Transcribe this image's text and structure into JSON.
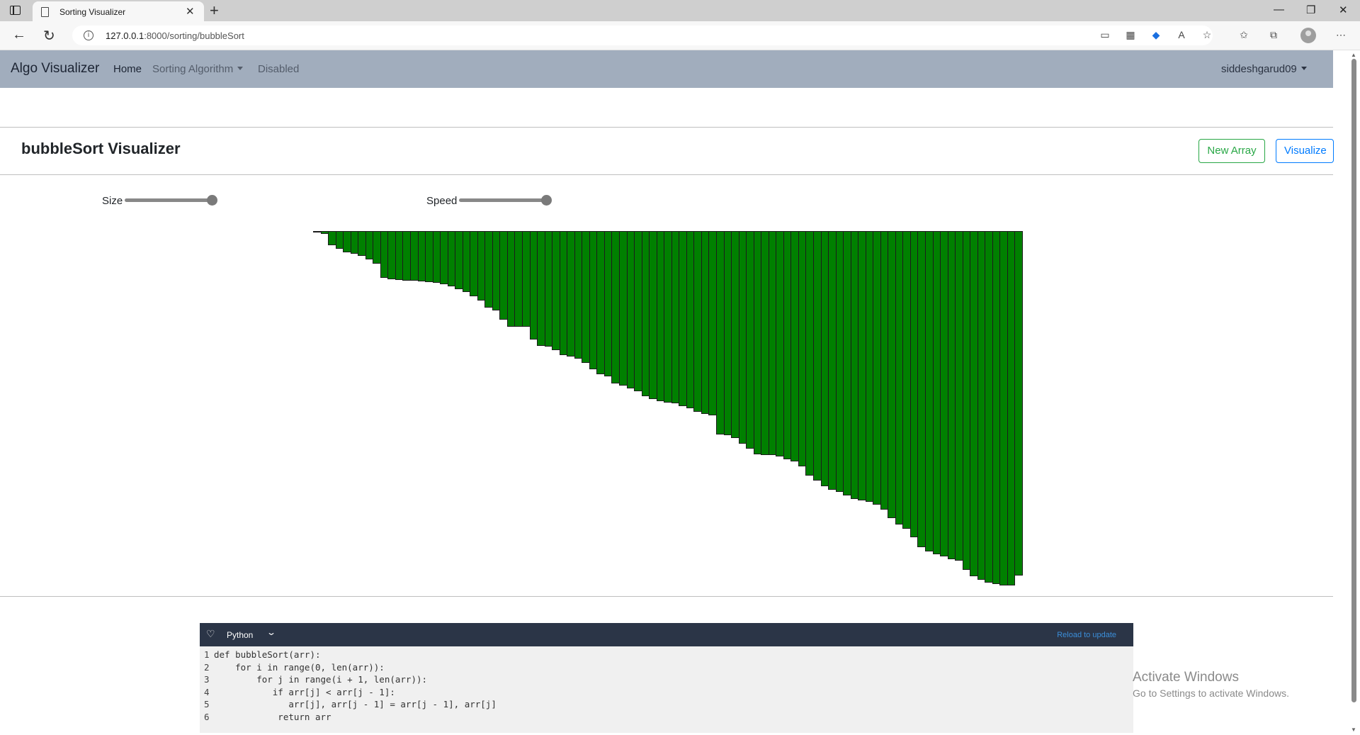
{
  "browser": {
    "tab_title": "Sorting Visualizer",
    "url_host": "127.0.0.1",
    "url_rest": ":8000/sorting/bubbleSort"
  },
  "navbar": {
    "brand": "Algo Visualizer",
    "links": [
      "Home",
      "Sorting Algorithm",
      "Disabled"
    ],
    "user": "siddeshgarud09"
  },
  "page": {
    "title": "bubbleSort Visualizer",
    "new_array_label": "New Array",
    "visualize_label": "Visualize"
  },
  "controls": {
    "size_label": "Size",
    "size_value": 1.0,
    "speed_label": "Speed",
    "speed_value": 1.0
  },
  "bars": {
    "color": "#008000",
    "values": [
      2,
      4,
      20,
      25,
      30,
      32,
      35,
      40,
      46,
      66,
      68,
      69,
      70,
      70,
      71,
      72,
      73,
      75,
      78,
      82,
      86,
      92,
      98,
      108,
      112,
      125,
      135,
      135,
      135,
      153,
      162,
      163,
      168,
      175,
      177,
      180,
      186,
      195,
      202,
      205,
      215,
      218,
      222,
      226,
      233,
      237,
      240,
      242,
      243,
      247,
      250,
      255,
      258,
      260,
      287,
      288,
      292,
      300,
      307,
      315,
      316,
      316,
      318,
      322,
      325,
      332,
      345,
      352,
      360,
      365,
      368,
      373,
      378,
      380,
      382,
      386,
      393,
      405,
      414,
      420,
      432,
      446,
      452,
      456,
      459,
      463,
      465,
      478,
      487,
      492,
      496,
      498,
      500,
      500,
      486
    ]
  },
  "code_panel": {
    "language": "Python",
    "reload_label": "Reload to update",
    "lines": [
      "def bubbleSort(arr):",
      "    for i in range(0, len(arr)):",
      "        for j in range(i + 1, len(arr)):",
      "           if arr[j] < arr[j - 1]:",
      "              arr[j], arr[j - 1] = arr[j - 1], arr[j]",
      "            return arr"
    ]
  },
  "watermark": {
    "title": "Activate Windows",
    "subtitle": "Go to Settings to activate Windows."
  }
}
